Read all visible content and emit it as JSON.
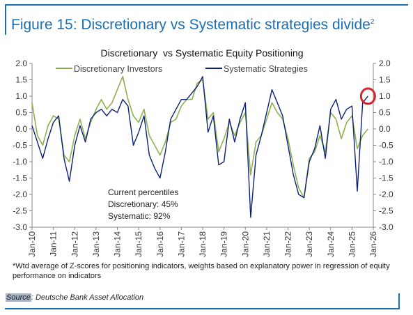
{
  "figure": {
    "title": "Figure 15: Discretionary vs Systematic strategies divide",
    "title_sup": "2",
    "footnote": "*Wtd average of Z-scores for positioning indicators, weights based on explanatory power in regression of equity performance on indicators",
    "source_label": "Source",
    "source_text": ": Deutsche Bank Asset Allocation",
    "accent_color": "#1b6fb5"
  },
  "chart_data": {
    "type": "line",
    "title": "Discretionary  vs Systematic Equity Positioning",
    "ylim": [
      -3.0,
      2.0
    ],
    "yticks": [
      "2.0",
      "1.5",
      "1.0",
      "0.5",
      "0.0",
      "-0.5",
      "-1.0",
      "-1.5",
      "-2.0",
      "-2.5",
      "-3.0"
    ],
    "xticks": [
      "Jan-10",
      "Jan-11",
      "Jan-12",
      "Jan-13",
      "Jan-14",
      "Jan-15",
      "Jan-16",
      "Jan-17",
      "Jan-18",
      "Jan-19",
      "Jan-20",
      "Jan-21",
      "Jan-22",
      "Jan-23",
      "Jan-24",
      "Jan-25",
      "Jan-26"
    ],
    "x_range": [
      "2010-01",
      "2026-01"
    ],
    "grid": false,
    "dual_y_axis": true,
    "legend_position": "top",
    "series": [
      {
        "name": "Discretionary Investors",
        "color": "#8db04f",
        "x": [
          "2010-01",
          "2010-04",
          "2010-07",
          "2010-10",
          "2011-01",
          "2011-04",
          "2011-07",
          "2011-10",
          "2012-01",
          "2012-04",
          "2012-07",
          "2012-10",
          "2013-01",
          "2013-04",
          "2013-07",
          "2013-10",
          "2014-01",
          "2014-04",
          "2014-07",
          "2014-10",
          "2015-01",
          "2015-04",
          "2015-07",
          "2015-10",
          "2016-01",
          "2016-04",
          "2016-07",
          "2016-10",
          "2017-01",
          "2017-04",
          "2017-07",
          "2017-10",
          "2018-01",
          "2018-04",
          "2018-07",
          "2018-10",
          "2019-01",
          "2019-04",
          "2019-07",
          "2019-10",
          "2020-01",
          "2020-04",
          "2020-07",
          "2020-10",
          "2021-01",
          "2021-04",
          "2021-07",
          "2021-10",
          "2022-01",
          "2022-04",
          "2022-07",
          "2022-10",
          "2023-01",
          "2023-04",
          "2023-07",
          "2023-10",
          "2024-01",
          "2024-04",
          "2024-07",
          "2024-10",
          "2025-01",
          "2025-04",
          "2025-07",
          "2025-10"
        ],
        "values": [
          0.8,
          -0.2,
          -0.5,
          0.1,
          0.4,
          0.3,
          -0.8,
          -1.0,
          -0.2,
          0.3,
          -0.3,
          0.2,
          0.6,
          0.9,
          0.6,
          0.8,
          1.2,
          1.6,
          0.9,
          0.4,
          0.2,
          0.6,
          -0.2,
          -0.5,
          -0.8,
          -0.4,
          0.2,
          0.3,
          0.7,
          0.9,
          0.9,
          1.4,
          1.5,
          0.3,
          0.5,
          -0.7,
          -0.3,
          0.2,
          -0.2,
          0.2,
          0.5,
          -1.4,
          -0.4,
          -0.2,
          0.3,
          0.8,
          0.5,
          0.3,
          -0.3,
          -1.1,
          -1.8,
          -2.1,
          -0.9,
          -0.7,
          -0.2,
          -0.7,
          0.5,
          0.3,
          -0.3,
          0.2,
          0.4,
          -0.6,
          -0.2,
          0.0
        ]
      },
      {
        "name": "Systematic Strategies",
        "color": "#0b1f7a",
        "x": [
          "2010-01",
          "2010-04",
          "2010-07",
          "2010-10",
          "2011-01",
          "2011-04",
          "2011-07",
          "2011-10",
          "2012-01",
          "2012-04",
          "2012-07",
          "2012-10",
          "2013-01",
          "2013-04",
          "2013-07",
          "2013-10",
          "2014-01",
          "2014-04",
          "2014-07",
          "2014-10",
          "2015-01",
          "2015-04",
          "2015-07",
          "2015-10",
          "2016-01",
          "2016-04",
          "2016-07",
          "2016-10",
          "2017-01",
          "2017-04",
          "2017-07",
          "2017-10",
          "2018-01",
          "2018-04",
          "2018-07",
          "2018-10",
          "2019-01",
          "2019-04",
          "2019-07",
          "2019-10",
          "2020-01",
          "2020-04",
          "2020-07",
          "2020-10",
          "2021-01",
          "2021-04",
          "2021-07",
          "2021-10",
          "2022-01",
          "2022-04",
          "2022-07",
          "2022-10",
          "2023-01",
          "2023-04",
          "2023-07",
          "2023-10",
          "2024-01",
          "2024-04",
          "2024-07",
          "2024-10",
          "2025-01",
          "2025-04",
          "2025-07",
          "2025-10"
        ],
        "values": [
          0.1,
          -0.4,
          -0.9,
          -0.3,
          0.2,
          0.4,
          -0.9,
          -1.6,
          -0.5,
          0.1,
          -0.4,
          0.3,
          0.5,
          0.6,
          0.4,
          0.6,
          0.5,
          0.9,
          0.7,
          -0.5,
          -0.1,
          0.4,
          -0.8,
          -1.2,
          -1.5,
          -0.7,
          0.3,
          0.6,
          0.9,
          0.9,
          1.1,
          1.3,
          1.6,
          -0.1,
          0.4,
          -1.1,
          -1.0,
          0.3,
          -0.4,
          0.3,
          0.8,
          -2.7,
          -0.8,
          -0.2,
          0.5,
          1.2,
          0.8,
          0.4,
          -0.5,
          -1.4,
          -2.0,
          -2.1,
          -1.0,
          -0.6,
          0.1,
          -0.9,
          0.6,
          0.9,
          0.3,
          0.6,
          0.7,
          -1.9,
          0.8,
          1.0
        ]
      }
    ],
    "annotation": {
      "heading": "Current percentiles",
      "lines": [
        "Discretionary: 45%",
        "Systematic: 92%"
      ]
    },
    "highlight": {
      "type": "circle",
      "x": "2025-10",
      "y": 1.0,
      "color": "#d9232e"
    }
  }
}
